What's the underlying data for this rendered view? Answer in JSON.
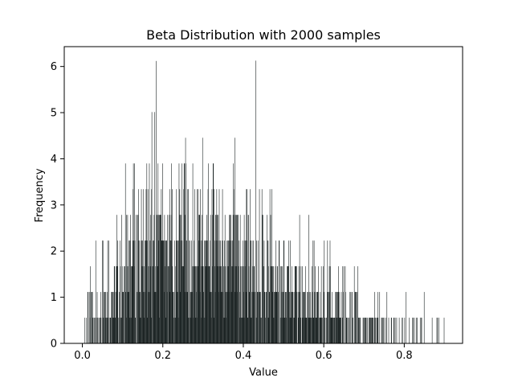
{
  "chart_data": {
    "type": "bar",
    "title": "Beta Distribution with 2000 samples",
    "xlabel": "Value",
    "ylabel": "Frequency",
    "xlim": [
      -0.045,
      0.945
    ],
    "ylim": [
      0,
      6.43
    ],
    "xticks": [
      {
        "value": 0.0,
        "label": "0.0"
      },
      {
        "value": 0.2,
        "label": "0.2"
      },
      {
        "value": 0.4,
        "label": "0.4"
      },
      {
        "value": 0.6,
        "label": "0.6"
      },
      {
        "value": 0.8,
        "label": "0.8"
      }
    ],
    "yticks": [
      {
        "value": 0,
        "label": "0"
      },
      {
        "value": 1,
        "label": "1"
      },
      {
        "value": 2,
        "label": "2"
      },
      {
        "value": 3,
        "label": "3"
      },
      {
        "value": 4,
        "label": "4"
      },
      {
        "value": 5,
        "label": "5"
      },
      {
        "value": 6,
        "label": "6"
      }
    ],
    "bins": 1000,
    "bin_range": [
      0.003,
      0.903
    ],
    "unit_height": 0.557,
    "peak": {
      "x": 0.183,
      "value": 6.12
    },
    "bar_color": "#1c2424",
    "grid": false
  }
}
